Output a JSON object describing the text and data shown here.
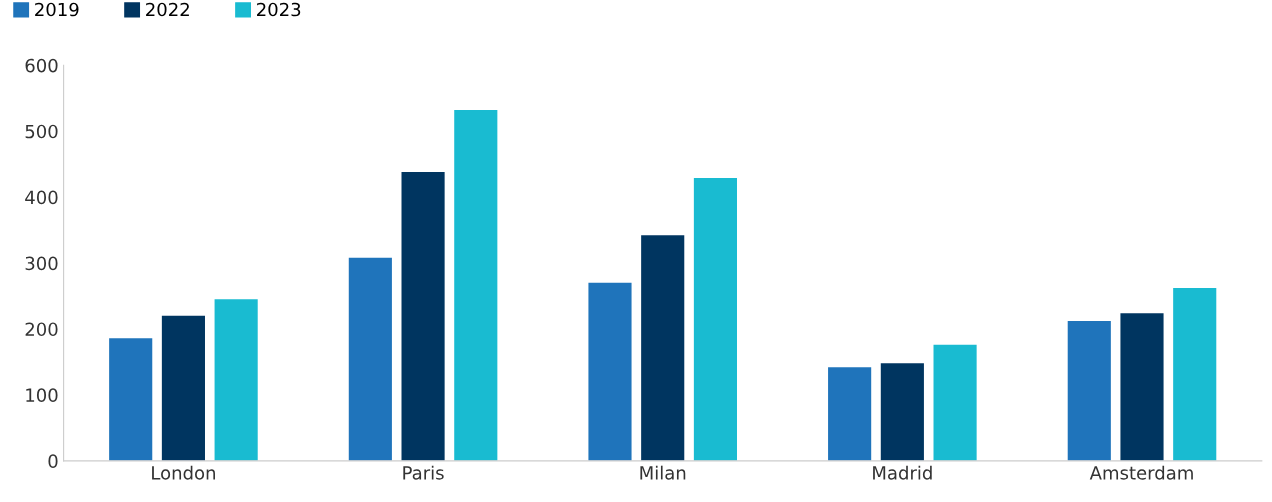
{
  "chart_data": {
    "type": "bar",
    "categories": [
      "London",
      "Paris",
      "Milan",
      "Madrid",
      "Amsterdam"
    ],
    "series": [
      {
        "name": "2019",
        "color": "#1f74bb",
        "values": [
          186,
          308,
          270,
          142,
          212
        ]
      },
      {
        "name": "2022",
        "color": "#003560",
        "values": [
          220,
          438,
          342,
          148,
          224
        ]
      },
      {
        "name": "2023",
        "color": "#19bbd1",
        "values": [
          245,
          532,
          429,
          176,
          262
        ]
      }
    ],
    "ylim": [
      0,
      600
    ],
    "yticks": [
      0,
      100,
      200,
      300,
      400,
      500,
      600
    ],
    "grid": false,
    "legend": "top left"
  }
}
